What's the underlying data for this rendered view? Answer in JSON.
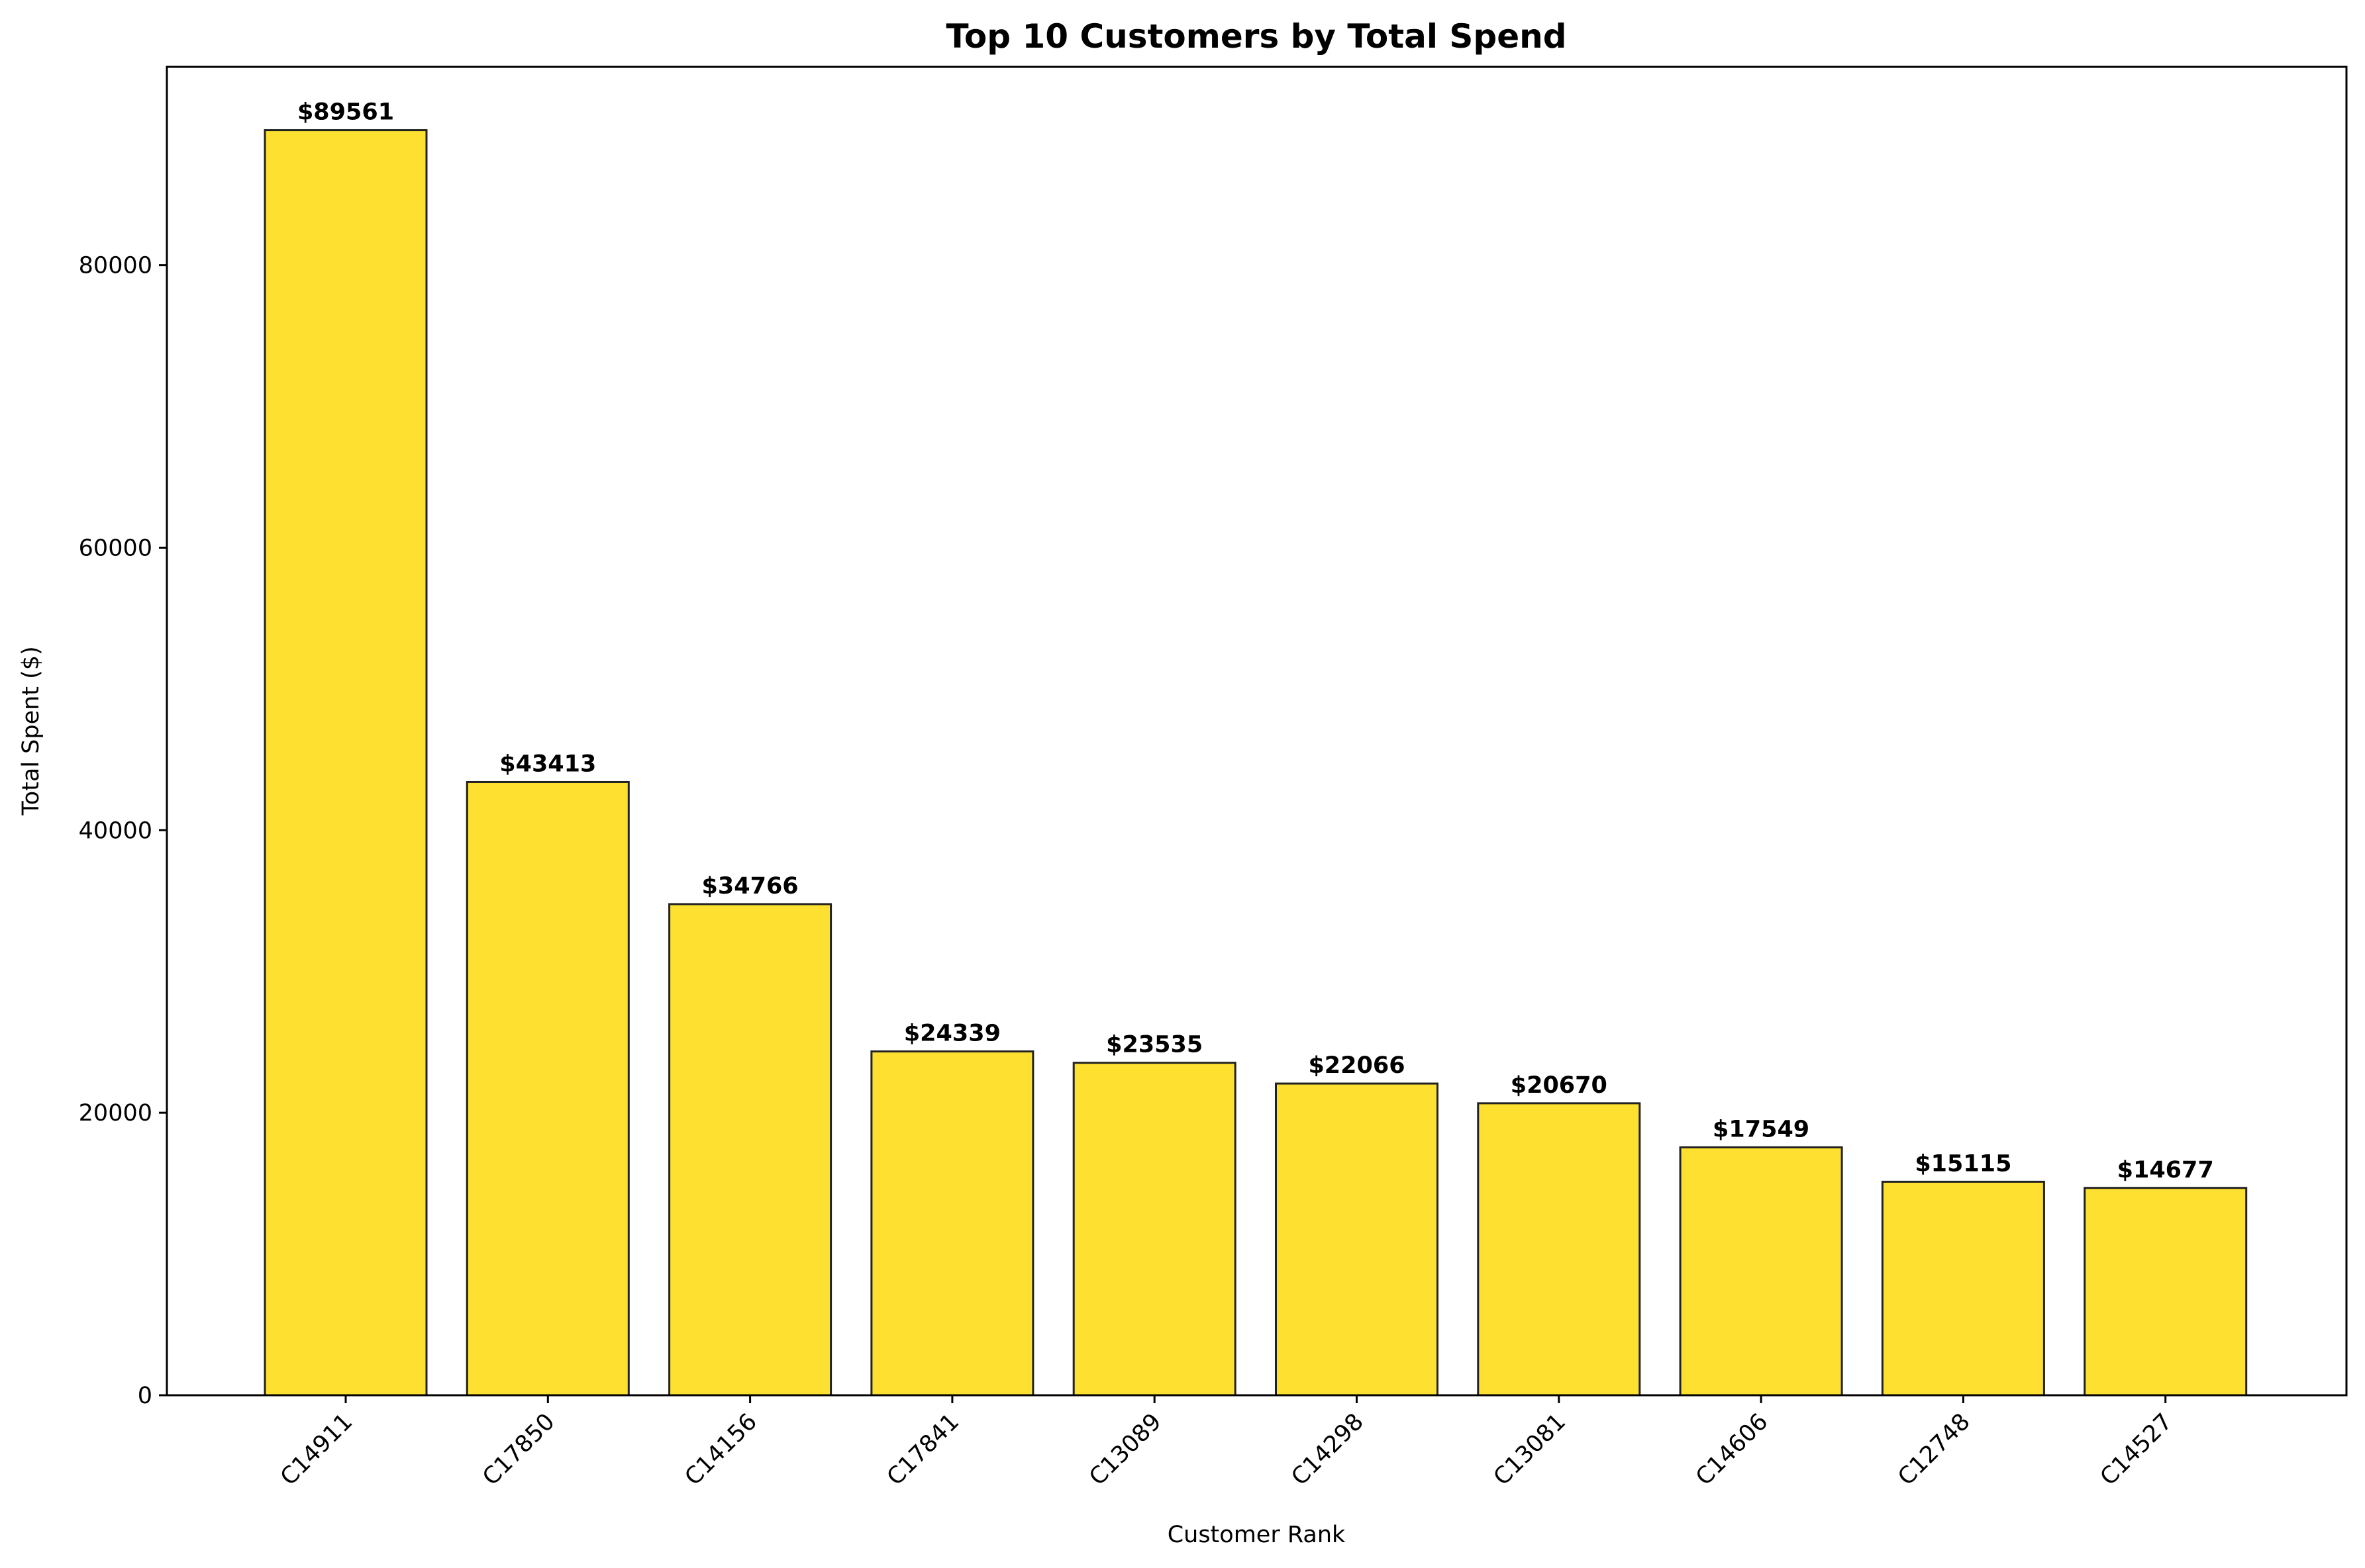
{
  "chart_data": {
    "type": "bar",
    "title": "Top 10 Customers by Total Spend",
    "xlabel": "Customer Rank",
    "ylabel": "Total Spent ($)",
    "categories": [
      "C14911",
      "C17850",
      "C14156",
      "C17841",
      "C13089",
      "C14298",
      "C13081",
      "C14606",
      "C12748",
      "C14527"
    ],
    "values": [
      89561,
      43413,
      34766,
      24339,
      23535,
      22066,
      20670,
      17549,
      15115,
      14677
    ],
    "data_labels": [
      "$89561",
      "$43413",
      "$34766",
      "$24339",
      "$23535",
      "$22066",
      "$20670",
      "$17549",
      "$15115",
      "$14677"
    ],
    "yticks": [
      0,
      20000,
      40000,
      60000,
      80000
    ],
    "ytick_labels": [
      "0",
      "20000",
      "40000",
      "60000",
      "80000"
    ],
    "ylim": [
      0,
      94039
    ],
    "grid": false,
    "legend": "none",
    "colors": {
      "bar_fill": "#FDE030",
      "bar_edge": "#222222",
      "axis": "#000000",
      "text": "#000000"
    }
  }
}
